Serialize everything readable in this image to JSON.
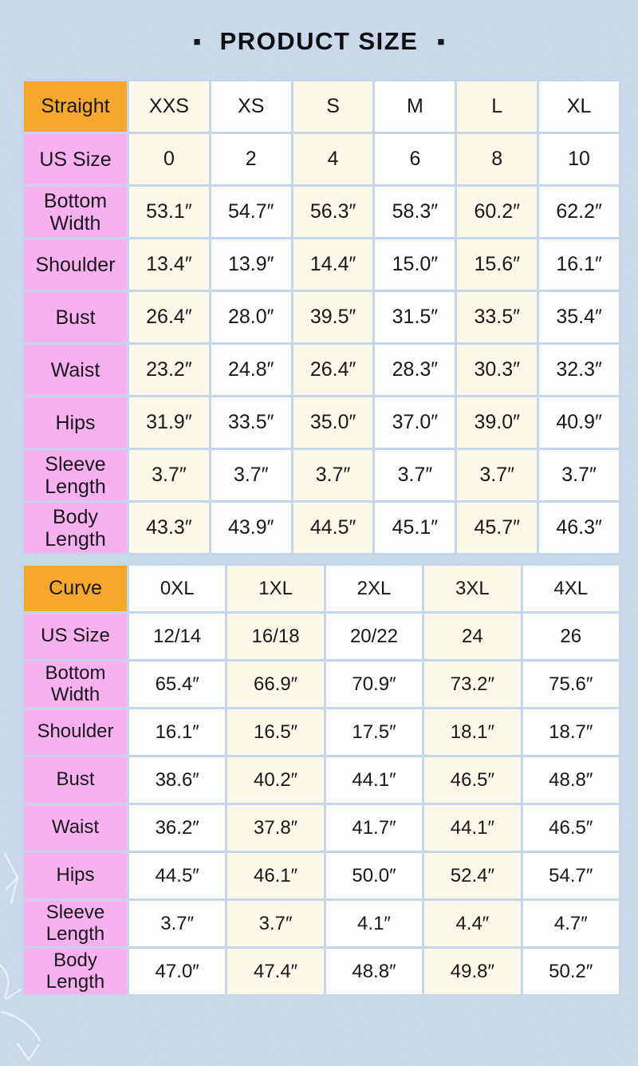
{
  "title": {
    "text": "PRODUCT SIZE",
    "square": "■"
  },
  "colors": {
    "bg": "#cad8eb",
    "grid": "#c6d6ea",
    "orange": "#f5a82d",
    "pink": "#f7b0f0",
    "cream": "#fbf8ea",
    "white": "#fdfdfb",
    "ink": "#18181b"
  },
  "tables": [
    {
      "name": "Straight",
      "columns": [
        "XXS",
        "XS",
        "S",
        "M",
        "L",
        "XL"
      ],
      "rows": [
        {
          "label": "US Size",
          "values": [
            "0",
            "2",
            "4",
            "6",
            "8",
            "10"
          ]
        },
        {
          "label": "Bottom Width",
          "values": [
            "53.1″",
            "54.7″",
            "56.3″",
            "58.3″",
            "60.2″",
            "62.2″"
          ]
        },
        {
          "label": "Shoulder",
          "values": [
            "13.4″",
            "13.9″",
            "14.4″",
            "15.0″",
            "15.6″",
            "16.1″"
          ]
        },
        {
          "label": "Bust",
          "values": [
            "26.4″",
            "28.0″",
            "39.5″",
            "31.5″",
            "33.5″",
            "35.4″"
          ]
        },
        {
          "label": "Waist",
          "values": [
            "23.2″",
            "24.8″",
            "26.4″",
            "28.3″",
            "30.3″",
            "32.3″"
          ]
        },
        {
          "label": "Hips",
          "values": [
            "31.9″",
            "33.5″",
            "35.0″",
            "37.0″",
            "39.0″",
            "40.9″"
          ]
        },
        {
          "label": "Sleeve Length",
          "values": [
            "3.7″",
            "3.7″",
            "3.7″",
            "3.7″",
            "3.7″",
            "3.7″"
          ]
        },
        {
          "label": "Body Length",
          "values": [
            "43.3″",
            "43.9″",
            "44.5″",
            "45.1″",
            "45.7″",
            "46.3″"
          ]
        }
      ]
    },
    {
      "name": "Curve",
      "columns": [
        "0XL",
        "1XL",
        "2XL",
        "3XL",
        "4XL"
      ],
      "rows": [
        {
          "label": "US Size",
          "values": [
            "12/14",
            "16/18",
            "20/22",
            "24",
            "26"
          ]
        },
        {
          "label": "Bottom Width",
          "values": [
            "65.4″",
            "66.9″",
            "70.9″",
            "73.2″",
            "75.6″"
          ]
        },
        {
          "label": "Shoulder",
          "values": [
            "16.1″",
            "16.5″",
            "17.5″",
            "18.1″",
            "18.7″"
          ]
        },
        {
          "label": "Bust",
          "values": [
            "38.6″",
            "40.2″",
            "44.1″",
            "46.5″",
            "48.8″"
          ]
        },
        {
          "label": "Waist",
          "values": [
            "36.2″",
            "37.8″",
            "41.7″",
            "44.1″",
            "46.5″"
          ]
        },
        {
          "label": "Hips",
          "values": [
            "44.5″",
            "46.1″",
            "50.0″",
            "52.4″",
            "54.7″"
          ]
        },
        {
          "label": "Sleeve Length",
          "values": [
            "3.7″",
            "3.7″",
            "4.1″",
            "4.4″",
            "4.7″"
          ]
        },
        {
          "label": "Body Length",
          "values": [
            "47.0″",
            "47.4″",
            "48.8″",
            "49.8″",
            "50.2″"
          ]
        }
      ]
    }
  ]
}
